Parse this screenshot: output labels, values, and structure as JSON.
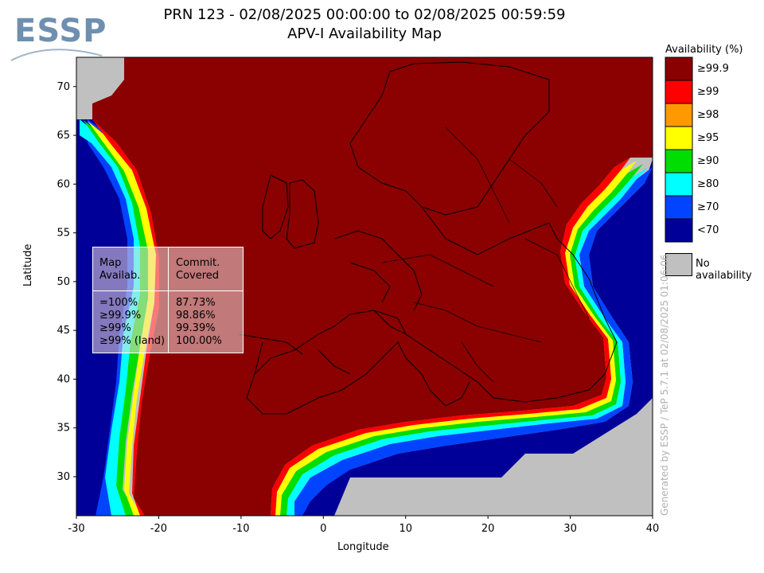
{
  "header": {
    "title_line1": "PRN 123 - 02/08/2025 00:00:00 to 02/08/2025 00:59:59",
    "title_line2": "APV-I Availability Map",
    "logo_text": "ESSP"
  },
  "map": {
    "xlabel": "Longitude",
    "ylabel": "Latitude",
    "x_ticks": [
      "-30",
      "-20",
      "-10",
      "0",
      "10",
      "20",
      "30",
      "40"
    ],
    "y_ticks": [
      "70",
      "65",
      "60",
      "55",
      "50",
      "45",
      "40",
      "35",
      "30"
    ],
    "xlim": [
      -30,
      40
    ],
    "ylim": [
      26,
      73
    ],
    "colors": {
      "no_availability": "#c0c0c0",
      "ge99_9": "#8b0000",
      "ge99": "#ff0000",
      "ge98": "#ff9900",
      "ge95": "#ffff00",
      "ge90": "#00dd00",
      "ge80": "#00ffff",
      "ge70": "#0044ff",
      "lt70": "#000099"
    }
  },
  "legend": {
    "title": "Availability (%)",
    "items": [
      {
        "label": "≥99.9",
        "color": "#8b0000"
      },
      {
        "label": "≥99",
        "color": "#ff0000"
      },
      {
        "label": "≥98",
        "color": "#ff9900"
      },
      {
        "label": "≥95",
        "color": "#ffff00"
      },
      {
        "label": "≥90",
        "color": "#00dd00"
      },
      {
        "label": "≥80",
        "color": "#00ffff"
      },
      {
        "label": "≥70",
        "color": "#0044ff"
      },
      {
        "label": "<70",
        "color": "#000099"
      }
    ],
    "no_availability_label": "No availability"
  },
  "stats": {
    "col1_header_line1": "Map",
    "col1_header_line2": "Availab.",
    "col2_header_line1": "Commit.",
    "col2_header_line2": "Covered",
    "rows": [
      {
        "label": "=100%",
        "value": "87.73%"
      },
      {
        "label": "≥99.9%",
        "value": "98.86%"
      },
      {
        "label": "≥99%",
        "value": "99.39%"
      },
      {
        "label": "≥99% (land)",
        "value": "100.00%"
      }
    ]
  },
  "footer": {
    "generated_text": "Generated by ESSP / TeP 5.7.1 at 02/08/2025 01:06:06"
  }
}
